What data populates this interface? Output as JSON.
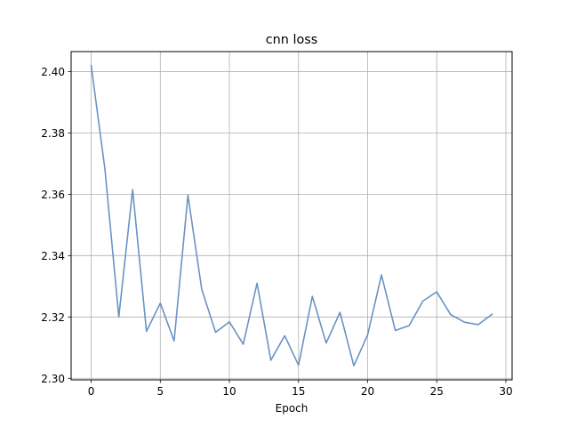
{
  "chart_data": {
    "type": "line",
    "title": "cnn loss",
    "xlabel": "Epoch",
    "ylabel": "",
    "grid": true,
    "legend": "none",
    "xlim": [
      -1.45,
      30.45
    ],
    "ylim": [
      2.2995,
      2.4065
    ],
    "xticks": [
      0,
      5,
      10,
      15,
      20,
      25,
      30
    ],
    "xtick_labels": [
      "0",
      "5",
      "10",
      "15",
      "20",
      "25",
      "30"
    ],
    "yticks": [
      2.3,
      2.32,
      2.34,
      2.36,
      2.38,
      2.4
    ],
    "ytick_labels": [
      "2.30",
      "2.32",
      "2.34",
      "2.36",
      "2.38",
      "2.40"
    ],
    "series": [
      {
        "color": "#6a93c4",
        "x": [
          0,
          1,
          2,
          3,
          4,
          5,
          6,
          7,
          8,
          9,
          10,
          11,
          12,
          13,
          14,
          15,
          16,
          17,
          18,
          19,
          20,
          21,
          22,
          23,
          24,
          25,
          26,
          27,
          28,
          29
        ],
        "y": [
          2.402,
          2.368,
          2.32,
          2.3615,
          2.3153,
          2.3245,
          2.3122,
          2.3597,
          2.329,
          2.315,
          2.3184,
          2.3111,
          2.331,
          2.3059,
          2.3139,
          2.3043,
          2.3267,
          2.3115,
          2.3215,
          2.3041,
          2.3142,
          2.3337,
          2.3156,
          2.3172,
          2.3252,
          2.3282,
          2.3208,
          2.3183,
          2.3175,
          2.3209
        ]
      }
    ]
  }
}
